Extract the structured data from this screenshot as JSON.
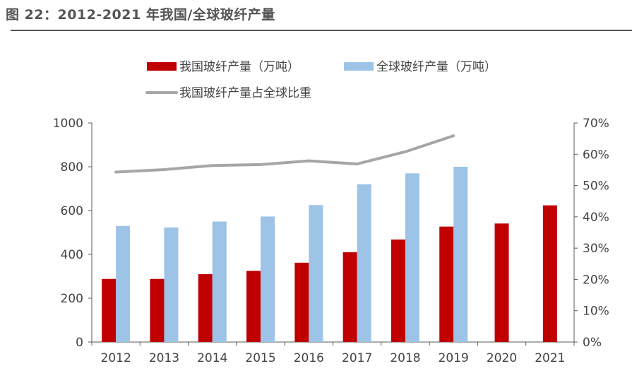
{
  "figure": {
    "title": "图 22：2012-2021 年我国/全球玻纤产量"
  },
  "colors": {
    "china_bar": "#C00000",
    "global_bar": "#9DC3E6",
    "share_line": "#A6A6A6",
    "axis": "#595959",
    "title_rule": "#555555"
  },
  "chart_data": {
    "type": "bar",
    "categories": [
      "2012",
      "2013",
      "2014",
      "2015",
      "2016",
      "2017",
      "2018",
      "2019",
      "2020",
      "2021"
    ],
    "series": [
      {
        "name": "我国玻纤产量（万吨）",
        "type": "bar",
        "axis": "left",
        "values": [
          288,
          288,
          310,
          325,
          362,
          410,
          468,
          527,
          541,
          624
        ]
      },
      {
        "name": "全球玻纤产量（万吨）",
        "type": "bar",
        "axis": "left",
        "values": [
          530,
          523,
          550,
          573,
          625,
          720,
          770,
          800,
          null,
          null
        ]
      },
      {
        "name": "我国玻纤产量占全球比重",
        "type": "line",
        "axis": "right",
        "values": [
          0.543,
          0.551,
          0.564,
          0.567,
          0.579,
          0.569,
          0.608,
          0.659,
          null,
          null
        ]
      }
    ],
    "left_axis": {
      "ylim": [
        0,
        1000
      ],
      "ticks": [
        "0",
        "200",
        "400",
        "600",
        "800",
        "1000"
      ]
    },
    "right_axis": {
      "ylim": [
        0,
        0.7
      ],
      "ticks": [
        "0%",
        "10%",
        "20%",
        "30%",
        "40%",
        "50%",
        "60%",
        "70%"
      ]
    },
    "legend_position": "top",
    "grid": false
  }
}
